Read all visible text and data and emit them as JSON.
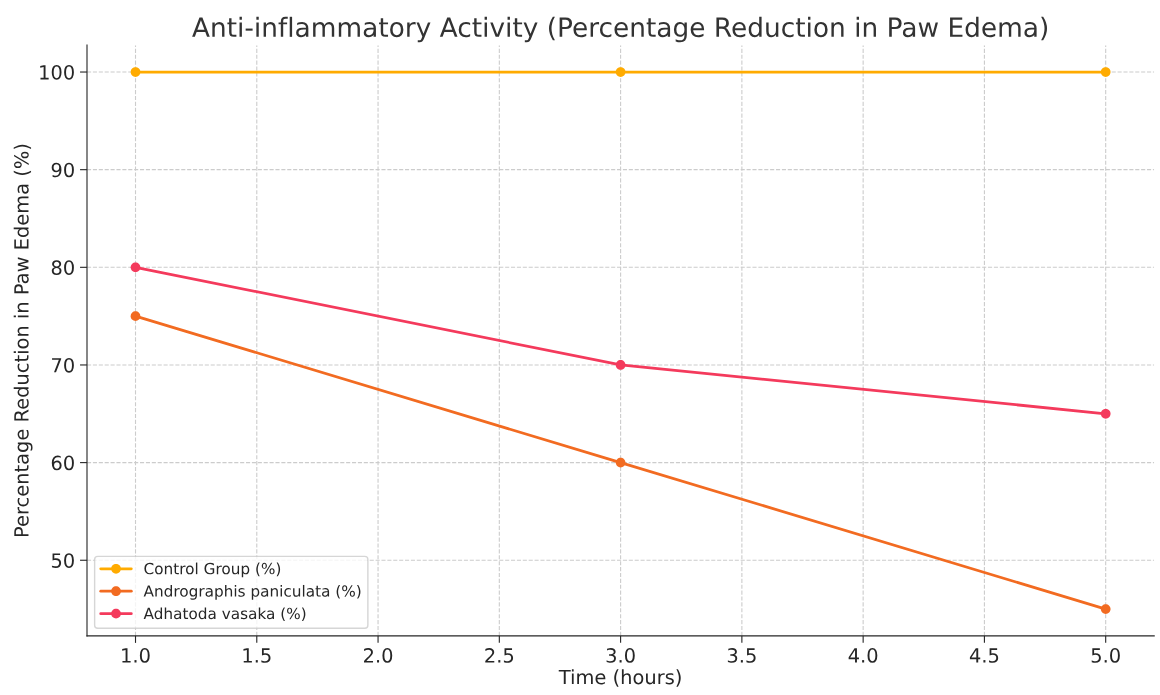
{
  "chart_data": {
    "type": "line",
    "title": "Anti-inflammatory Activity (Percentage Reduction in Paw Edema)",
    "xlabel": "Time (hours)",
    "ylabel": "Percentage Reduction in Paw Edema (%)",
    "x": [
      1,
      3,
      5
    ],
    "series": [
      {
        "name": "Control Group (%)",
        "color": "#ffab00",
        "values": [
          100,
          100,
          100
        ]
      },
      {
        "name": "Andrographis paniculata (%)",
        "color": "#f26b21",
        "values": [
          75,
          60,
          45
        ]
      },
      {
        "name": "Adhatoda vasaka (%)",
        "color": "#f43a5c",
        "values": [
          80,
          70,
          65
        ]
      }
    ],
    "xlim": [
      0.8,
      5.2
    ],
    "xticks": [
      {
        "value": 1,
        "label": "1.0"
      },
      {
        "value": 1.5,
        "label": "1.5"
      },
      {
        "value": 2,
        "label": "2.0"
      },
      {
        "value": 2.5,
        "label": "2.5"
      },
      {
        "value": 3,
        "label": "3.0"
      },
      {
        "value": 3.5,
        "label": "3.5"
      },
      {
        "value": 4,
        "label": "4.0"
      },
      {
        "value": 4.5,
        "label": "4.5"
      },
      {
        "value": 5,
        "label": "5.0"
      }
    ],
    "ylim": [
      42.25,
      102.75
    ],
    "yticks": [
      50,
      60,
      70,
      80,
      90,
      100
    ],
    "grid": true,
    "legend": "bottom left",
    "marker": "circle",
    "line_style": "solid"
  }
}
